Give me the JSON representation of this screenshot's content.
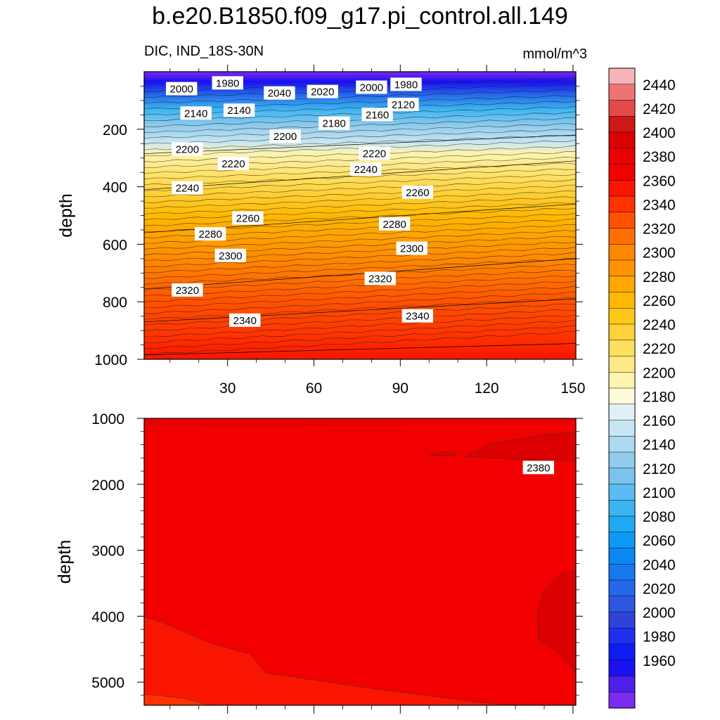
{
  "title": "b.e20.B1850.f09_g17.pi_control.all.149",
  "subtitle": "DIC, IND_18S-30N",
  "units": "mmol/m^3",
  "chart_data": [
    {
      "type": "heatmap",
      "panel": "upper",
      "ylabel": "depth",
      "xlim": [
        1,
        151
      ],
      "ylim": [
        1000,
        0
      ],
      "xticks": [
        30,
        60,
        90,
        120,
        150
      ],
      "yticks": [
        200,
        400,
        600,
        800,
        1000
      ],
      "contour_labels": [
        {
          "x": 14,
          "y": 60,
          "value": "2000"
        },
        {
          "x": 30,
          "y": 40,
          "value": "1980"
        },
        {
          "x": 48,
          "y": 75,
          "value": "2040"
        },
        {
          "x": 63,
          "y": 70,
          "value": "2020"
        },
        {
          "x": 80,
          "y": 55,
          "value": "2000"
        },
        {
          "x": 92,
          "y": 45,
          "value": "1980"
        },
        {
          "x": 19,
          "y": 145,
          "value": "2140"
        },
        {
          "x": 34,
          "y": 135,
          "value": "2140"
        },
        {
          "x": 91,
          "y": 115,
          "value": "2120"
        },
        {
          "x": 82,
          "y": 150,
          "value": "2160"
        },
        {
          "x": 67,
          "y": 180,
          "value": "2180"
        },
        {
          "x": 50,
          "y": 225,
          "value": "2200"
        },
        {
          "x": 16,
          "y": 270,
          "value": "2200"
        },
        {
          "x": 32,
          "y": 320,
          "value": "2220"
        },
        {
          "x": 81,
          "y": 285,
          "value": "2220"
        },
        {
          "x": 78,
          "y": 340,
          "value": "2240"
        },
        {
          "x": 16,
          "y": 405,
          "value": "2240"
        },
        {
          "x": 96,
          "y": 420,
          "value": "2260"
        },
        {
          "x": 37,
          "y": 510,
          "value": "2260"
        },
        {
          "x": 24,
          "y": 565,
          "value": "2280"
        },
        {
          "x": 88,
          "y": 530,
          "value": "2280"
        },
        {
          "x": 31,
          "y": 640,
          "value": "2300"
        },
        {
          "x": 94,
          "y": 615,
          "value": "2300"
        },
        {
          "x": 16,
          "y": 760,
          "value": "2320"
        },
        {
          "x": 83,
          "y": 720,
          "value": "2320"
        },
        {
          "x": 36,
          "y": 865,
          "value": "2340"
        },
        {
          "x": 96,
          "y": 850,
          "value": "2340"
        }
      ],
      "contours": [
        {
          "value": 2200,
          "x": [
            1,
            151
          ],
          "y": [
            285,
            220
          ]
        },
        {
          "value": 2240,
          "x": [
            1,
            151
          ],
          "y": [
            410,
            310
          ]
        },
        {
          "value": 2280,
          "x": [
            1,
            151
          ],
          "y": [
            560,
            460
          ]
        },
        {
          "value": 2320,
          "x": [
            1,
            151
          ],
          "y": [
            755,
            650
          ]
        },
        {
          "value": 2340,
          "x": [
            1,
            151
          ],
          "y": [
            870,
            790
          ]
        },
        {
          "value": 2360,
          "x": [
            1,
            151
          ],
          "y": [
            985,
            945
          ]
        }
      ]
    },
    {
      "type": "heatmap",
      "panel": "lower",
      "ylabel": "depth",
      "xlim": [
        1,
        151
      ],
      "ylim": [
        5350,
        1000
      ],
      "yticks": [
        1000,
        2000,
        3000,
        4000,
        5000
      ],
      "contour_labels": [
        {
          "x": 138,
          "y": 1750,
          "value": "2380"
        }
      ],
      "contours": [
        {
          "value": 2360,
          "x": [
            1,
            151
          ],
          "y": [
            1200,
            1050
          ]
        },
        {
          "value": 2380,
          "x": [
            110,
            151
          ],
          "y": [
            1620,
            1350
          ]
        }
      ]
    }
  ],
  "colorbar": {
    "labels": [
      "2440",
      "2420",
      "2400",
      "2380",
      "2360",
      "2340",
      "2320",
      "2300",
      "2280",
      "2260",
      "2240",
      "2220",
      "2200",
      "2180",
      "2160",
      "2140",
      "2120",
      "2100",
      "2080",
      "2060",
      "2040",
      "2020",
      "2000",
      "1980",
      "1960"
    ],
    "colors_top_to_bottom": [
      "#f7b4b8",
      "#ee7474",
      "#e44a4a",
      "#cf1818",
      "#dd0000",
      "#e90000",
      "#f20000",
      "#fa1500",
      "#ff3200",
      "#ff5200",
      "#ff6e00",
      "#ff8600",
      "#ff9400",
      "#ffa800",
      "#ffb900",
      "#ffc718",
      "#ffd23c",
      "#ffdf5e",
      "#ffe985",
      "#fff3b0",
      "#fffbda",
      "#e0f0f6",
      "#c6e6f2",
      "#add9ee",
      "#92ccec",
      "#79c3ed",
      "#5abcf0",
      "#3cb4f2",
      "#1fa9f3",
      "#0b9af5",
      "#0b87f4",
      "#1878f0",
      "#2568ea",
      "#2d57e0",
      "#2f43d8",
      "#1f2ff0",
      "#0f1cf4",
      "#1a10f0",
      "#4d1fe8",
      "#7a2cef"
    ]
  }
}
